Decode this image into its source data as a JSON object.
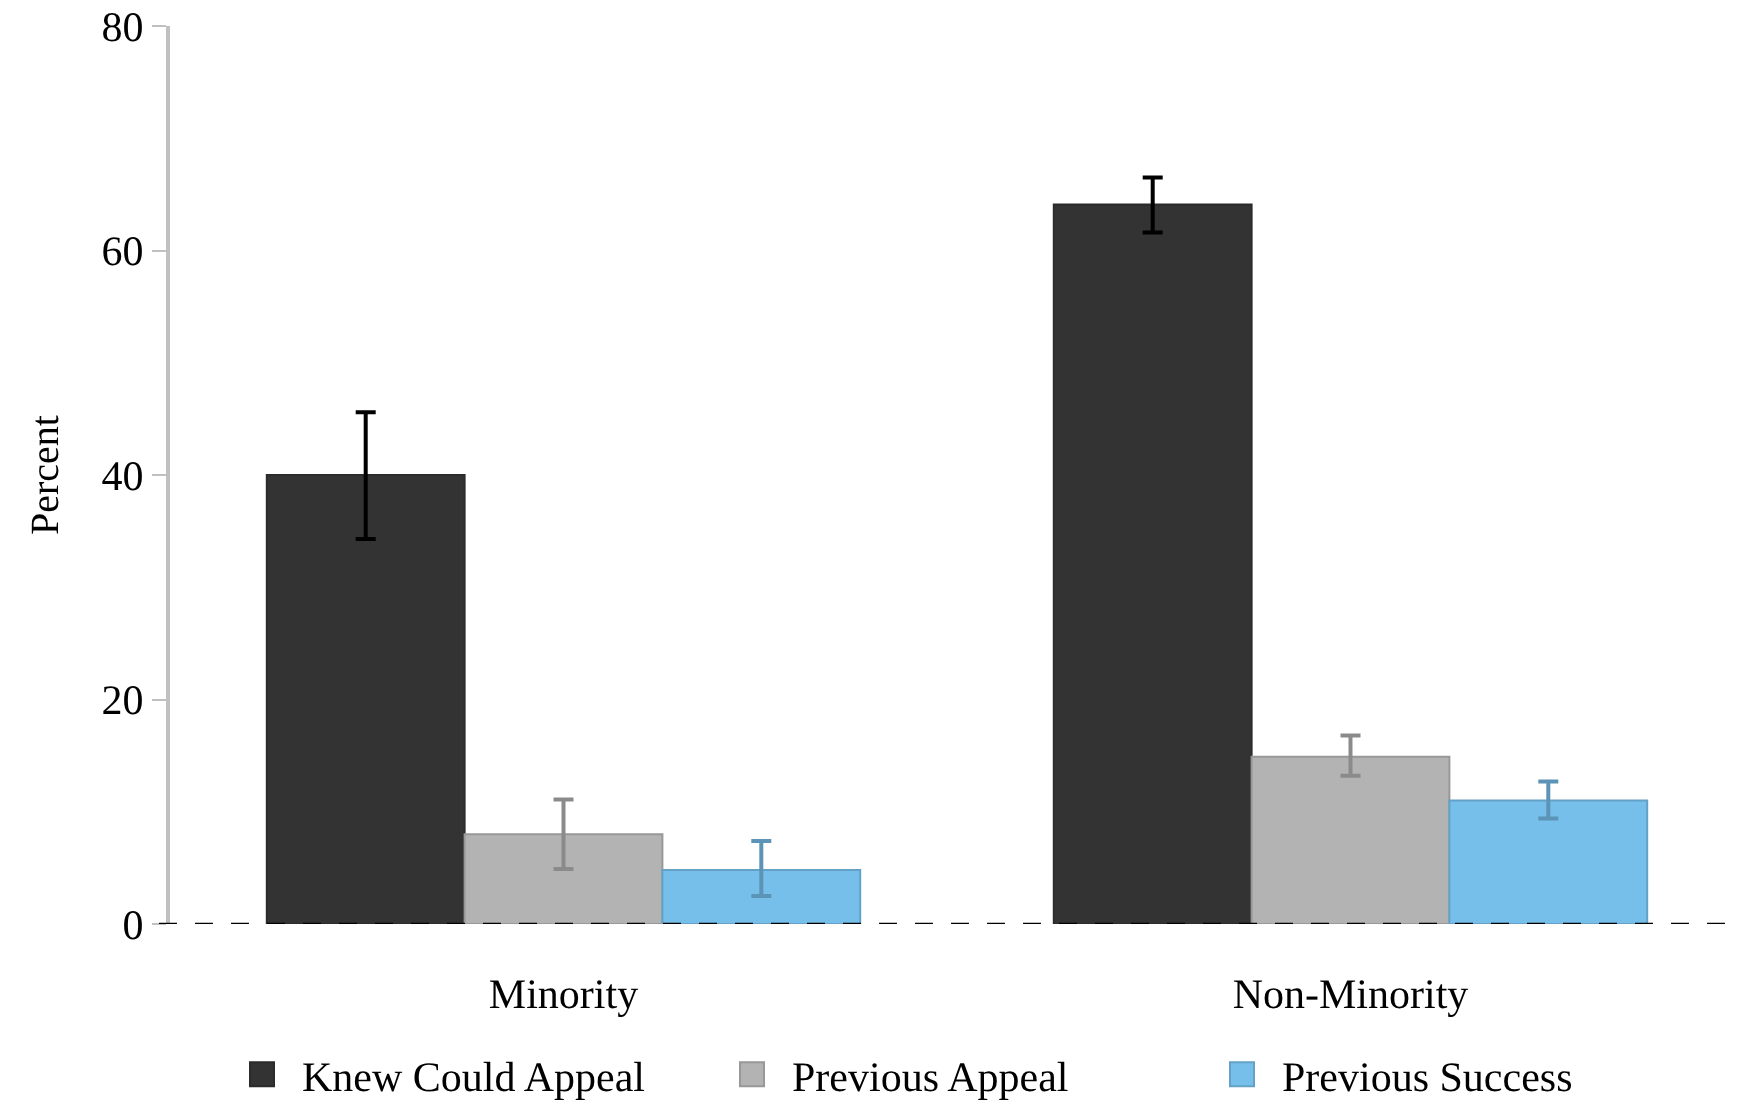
{
  "chart_data": {
    "type": "bar",
    "ylabel": "Percent",
    "categories": [
      "Minority",
      "Non-Minority"
    ],
    "series": [
      {
        "name": "Knew Could Appeal",
        "color": "#333333",
        "values": [
          40.0,
          64.1
        ],
        "errors": [
          [
            34.3,
            45.6
          ],
          [
            61.6,
            66.5
          ]
        ]
      },
      {
        "name": "Previous Appeal",
        "color": "#b3b3b3",
        "values": [
          8.0,
          14.9
        ],
        "errors": [
          [
            4.9,
            11.1
          ],
          [
            13.2,
            16.8
          ]
        ]
      },
      {
        "name": "Previous Success",
        "color": "#75bfea",
        "values": [
          4.8,
          11.0
        ],
        "errors": [
          [
            2.5,
            7.4
          ],
          [
            9.4,
            12.7
          ]
        ]
      }
    ],
    "ylim": [
      0,
      80
    ],
    "yticks": [
      0,
      20,
      40,
      60,
      80
    ],
    "ref_lines": [
      {
        "axis": "y",
        "value": 0,
        "color": "#000000",
        "line_style": "dashed"
      }
    ],
    "grid": false,
    "legend": "bottom"
  }
}
